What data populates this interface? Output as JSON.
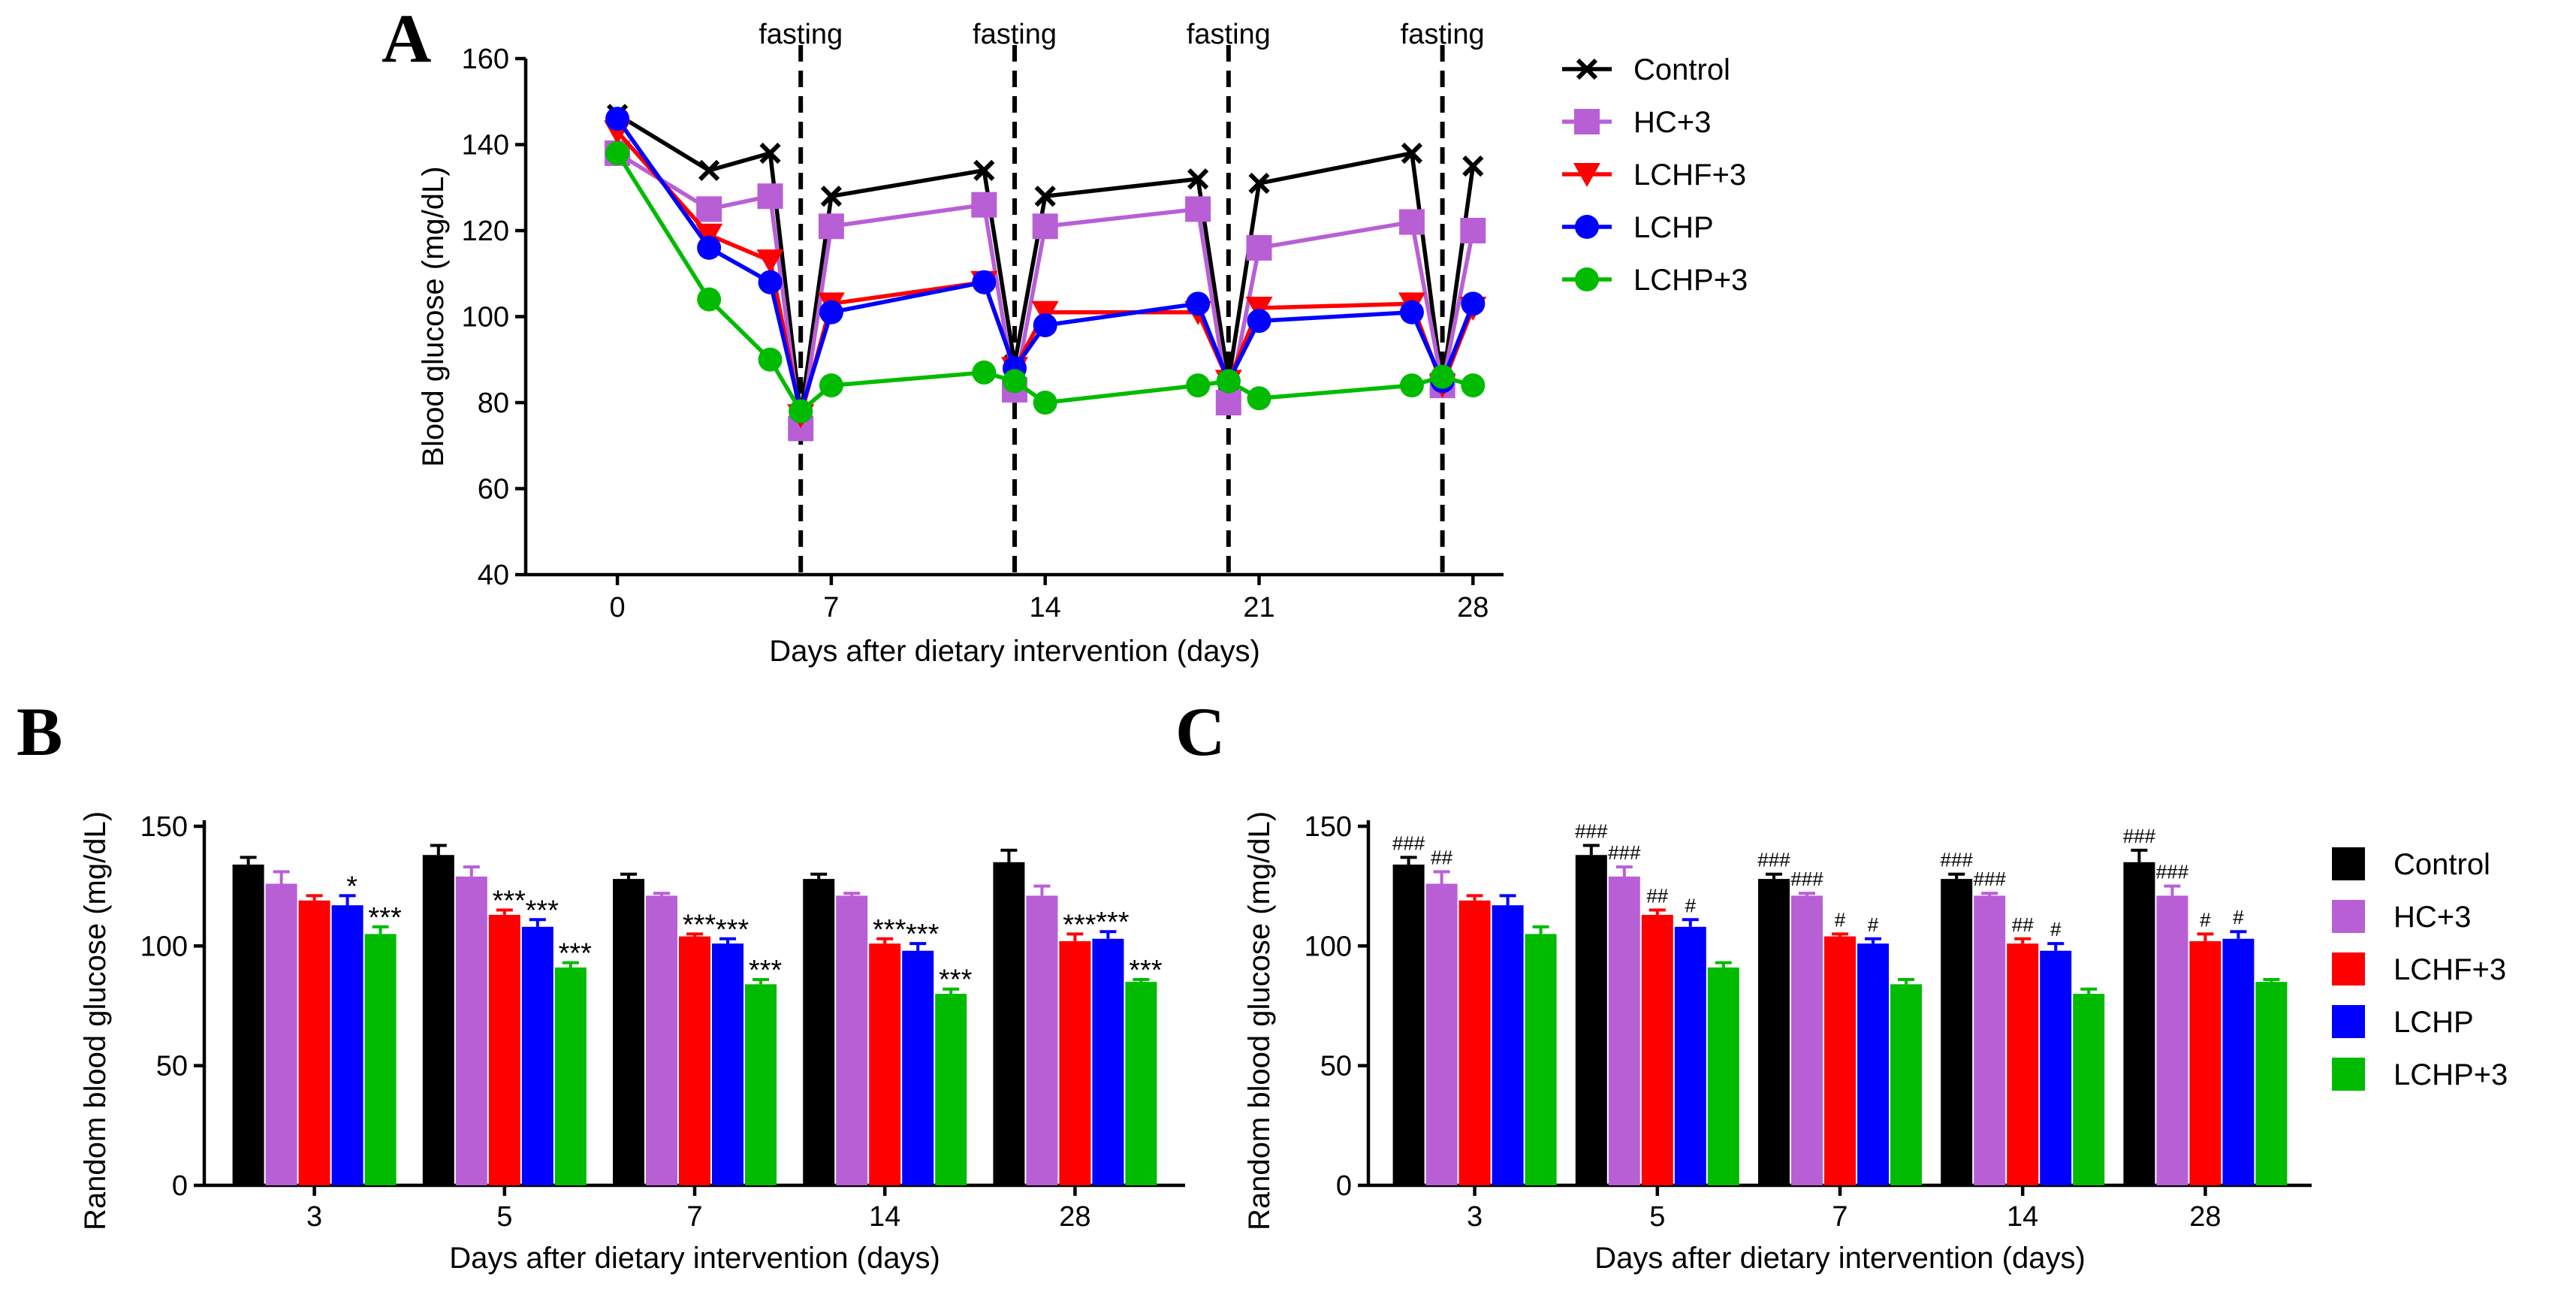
{
  "chart_data": [
    {
      "id": "A",
      "type": "line",
      "panel_label": "A",
      "xlabel": "Days after dietary intervention (days)",
      "ylabel": "Blood glucose (mg/dL)",
      "xlim": [
        -3,
        29
      ],
      "ylim": [
        40,
        160
      ],
      "xticks": [
        0,
        7,
        14,
        21,
        28
      ],
      "yticks": [
        40,
        60,
        80,
        100,
        120,
        140,
        160
      ],
      "fasting_label": "fasting",
      "fasting_days": [
        6,
        13,
        20,
        27
      ],
      "series": [
        {
          "name": "Control",
          "color": "#000000",
          "marker": "x",
          "x": [
            0,
            3,
            5,
            6,
            7,
            12,
            13,
            14,
            19,
            20,
            21,
            26,
            27,
            28
          ],
          "y": [
            147,
            134,
            138,
            77,
            128,
            134,
            89,
            128,
            132,
            85,
            131,
            138,
            84,
            135
          ]
        },
        {
          "name": "HC+3",
          "color": "#B85FD6",
          "marker": "square",
          "x": [
            0,
            3,
            5,
            6,
            7,
            12,
            13,
            14,
            19,
            20,
            21,
            26,
            27,
            28
          ],
          "y": [
            138,
            125,
            128,
            74,
            121,
            126,
            83,
            121,
            125,
            80,
            116,
            122,
            84,
            120
          ]
        },
        {
          "name": "LCHF+3",
          "color": "#FF0000",
          "marker": "triangle-down",
          "x": [
            0,
            3,
            5,
            6,
            7,
            12,
            13,
            14,
            19,
            20,
            21,
            26,
            27,
            28
          ],
          "y": [
            143,
            119,
            113,
            77,
            103,
            108,
            88,
            101,
            101,
            85,
            102,
            103,
            84,
            102
          ]
        },
        {
          "name": "LCHP",
          "color": "#0000FF",
          "marker": "circle",
          "x": [
            0,
            3,
            5,
            6,
            7,
            12,
            13,
            14,
            19,
            20,
            21,
            26,
            27,
            28
          ],
          "y": [
            146,
            116,
            108,
            78,
            101,
            108,
            88,
            98,
            103,
            85,
            99,
            101,
            85,
            103
          ]
        },
        {
          "name": "LCHP+3",
          "color": "#00BB00",
          "marker": "circle",
          "x": [
            0,
            3,
            5,
            6,
            7,
            12,
            13,
            14,
            19,
            20,
            21,
            26,
            27,
            28
          ],
          "y": [
            138,
            104,
            90,
            78,
            84,
            87,
            85,
            80,
            84,
            85,
            81,
            84,
            86,
            84
          ]
        }
      ]
    },
    {
      "id": "B",
      "type": "bar",
      "panel_label": "B",
      "xlabel": "Days after dietary intervention (days)",
      "ylabel": "Random blood glucose  (mg/dL)",
      "ylim": [
        0,
        150
      ],
      "yticks": [
        0,
        50,
        100,
        150
      ],
      "categories": [
        "3",
        "5",
        "7",
        "14",
        "28"
      ],
      "series": [
        {
          "name": "Control",
          "color": "#000000",
          "values": [
            134,
            138,
            128,
            128,
            135
          ],
          "errors": [
            3,
            4,
            2,
            2,
            5
          ],
          "annotations": [
            "",
            "",
            "",
            "",
            ""
          ]
        },
        {
          "name": "HC+3",
          "color": "#B85FD6",
          "values": [
            126,
            129,
            121,
            121,
            121
          ],
          "errors": [
            5,
            4,
            1,
            1,
            4
          ],
          "annotations": [
            "",
            "",
            "",
            "",
            ""
          ]
        },
        {
          "name": "LCHF+3",
          "color": "#FF0000",
          "values": [
            119,
            113,
            104,
            101,
            102
          ],
          "errors": [
            2,
            2,
            1,
            2,
            3
          ],
          "annotations": [
            "",
            "***",
            "***",
            "***",
            "***"
          ]
        },
        {
          "name": "LCHP",
          "color": "#0000FF",
          "values": [
            117,
            108,
            101,
            98,
            103
          ],
          "errors": [
            4,
            3,
            2,
            3,
            3
          ],
          "annotations": [
            "*",
            "***",
            "***",
            "***",
            "***"
          ]
        },
        {
          "name": "LCHP+3",
          "color": "#00BB00",
          "values": [
            105,
            91,
            84,
            80,
            85
          ],
          "errors": [
            3,
            2,
            2,
            2,
            1
          ],
          "annotations": [
            "***",
            "***",
            "***",
            "***",
            "***"
          ]
        }
      ]
    },
    {
      "id": "C",
      "type": "bar",
      "panel_label": "C",
      "xlabel": "Days after dietary intervention (days)",
      "ylabel": "Random blood glucose  (mg/dL)",
      "ylim": [
        0,
        150
      ],
      "yticks": [
        0,
        50,
        100,
        150
      ],
      "categories": [
        "3",
        "5",
        "7",
        "14",
        "28"
      ],
      "legend": [
        "Control",
        "HC+3",
        "LCHF+3",
        "LCHP",
        "LCHP+3"
      ],
      "series": [
        {
          "name": "Control",
          "color": "#000000",
          "values": [
            134,
            138,
            128,
            128,
            135
          ],
          "errors": [
            3,
            4,
            2,
            2,
            5
          ],
          "annotations": [
            "###",
            "###",
            "###",
            "###",
            "###"
          ]
        },
        {
          "name": "HC+3",
          "color": "#B85FD6",
          "values": [
            126,
            129,
            121,
            121,
            121
          ],
          "errors": [
            5,
            4,
            1,
            1,
            4
          ],
          "annotations": [
            "##",
            "###",
            "###",
            "###",
            "###"
          ]
        },
        {
          "name": "LCHF+3",
          "color": "#FF0000",
          "values": [
            119,
            113,
            104,
            101,
            102
          ],
          "errors": [
            2,
            2,
            1,
            2,
            3
          ],
          "annotations": [
            "",
            "##",
            "#",
            "##",
            "#"
          ]
        },
        {
          "name": "LCHP",
          "color": "#0000FF",
          "values": [
            117,
            108,
            101,
            98,
            103
          ],
          "errors": [
            4,
            3,
            2,
            3,
            3
          ],
          "annotations": [
            "",
            "#",
            "#",
            "#",
            "#"
          ]
        },
        {
          "name": "LCHP+3",
          "color": "#00BB00",
          "values": [
            105,
            91,
            84,
            80,
            85
          ],
          "errors": [
            3,
            2,
            2,
            2,
            1
          ],
          "annotations": [
            "",
            "",
            "",
            "",
            ""
          ]
        }
      ]
    }
  ]
}
